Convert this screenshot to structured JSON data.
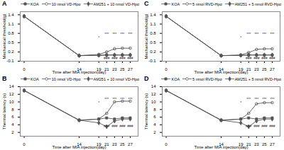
{
  "chart_data": [
    {
      "type": "line",
      "title": "A",
      "xlabel": "Time after MIA injection(day)",
      "ylabel": "Mechanical threshold(g)",
      "x": [
        0,
        14,
        19,
        21,
        23,
        25,
        27
      ],
      "xlim": [
        -1,
        29
      ],
      "xticks": [
        0,
        14,
        19,
        21,
        23,
        25,
        27
      ],
      "ylim": [
        -0.1,
        1.5
      ],
      "yticks": [
        -0.1,
        0.2,
        0.5,
        0.8,
        1.1,
        1.4
      ],
      "grid": false,
      "legend": "upper right",
      "series": [
        {
          "name": "KOA",
          "color": "#555555",
          "marker": "square",
          "line_style": "solid",
          "values": [
            1.35,
            0.08,
            0.09,
            0.1,
            0.1,
            0.1,
            0.1
          ]
        },
        {
          "name": "10 nmol VD-Hpα",
          "color": "#555555",
          "marker": "open-circle",
          "line_style": "solid",
          "values": [
            1.35,
            0.08,
            0.12,
            0.2,
            0.3,
            0.32,
            0.32
          ]
        },
        {
          "name": "AM251 + 10 nmol VD-Hpα",
          "color": "#555555",
          "marker": "diamond",
          "line_style": "solid",
          "values": [
            1.35,
            0.08,
            0.09,
            0.1,
            0.1,
            0.1,
            0.1
          ]
        }
      ],
      "annotations": [
        {
          "text": "***",
          "x": 21,
          "y": 0.732
        },
        {
          "text": "***",
          "x": 23,
          "y": 0.732
        },
        {
          "text": "***",
          "x": 25,
          "y": 0.732
        },
        {
          "text": "***",
          "x": 27,
          "y": 0.732
        },
        {
          "text": "###",
          "x": 21,
          "y": -0.052
        },
        {
          "text": "###",
          "x": 23,
          "y": -0.052
        },
        {
          "text": "###",
          "x": 25,
          "y": -0.052
        },
        {
          "text": "###",
          "x": 27,
          "y": -0.052
        },
        {
          "text": "*",
          "x": 19,
          "y": 0.6222
        }
      ]
    },
    {
      "type": "line",
      "title": "B",
      "xlabel": "Time after MIA injection(day)",
      "ylabel": "Thermal latency (s)",
      "x": [
        0,
        14,
        19,
        21,
        23,
        25,
        27
      ],
      "xlim": [
        -1,
        29
      ],
      "xticks": [
        0,
        14,
        19,
        21,
        23,
        25,
        27
      ],
      "ylim": [
        1,
        14
      ],
      "yticks": [
        2,
        4,
        6,
        8,
        10,
        12,
        14
      ],
      "grid": false,
      "legend": "upper right",
      "series": [
        {
          "name": "KOA",
          "color": "#555555",
          "marker": "square",
          "line_style": "solid",
          "values": [
            13.0,
            5.2,
            5.5,
            5.8,
            5.5,
            5.8,
            5.8
          ]
        },
        {
          "name": "10 nmol VD-Hpα",
          "color": "#555555",
          "marker": "open-circle",
          "line_style": "solid",
          "values": [
            13.0,
            5.2,
            5.5,
            7.0,
            10.0,
            10.2,
            10.2
          ]
        },
        {
          "name": "AM251 + 10 nmol VD-Hpα",
          "color": "#555555",
          "marker": "diamond",
          "line_style": "solid",
          "values": [
            13.0,
            5.2,
            4.5,
            3.5,
            5.0,
            5.5,
            5.5
          ]
        }
      ],
      "annotations": [
        {
          "text": "***",
          "x": 21,
          "y": 10.36
        },
        {
          "text": "***",
          "x": 23,
          "y": 10.36
        },
        {
          "text": "***",
          "x": 25,
          "y": 10.36
        },
        {
          "text": "***",
          "x": 27,
          "y": 10.36
        },
        {
          "text": "###",
          "x": 21,
          "y": 3.34
        },
        {
          "text": "###",
          "x": 23,
          "y": 3.34
        },
        {
          "text": "###",
          "x": 25,
          "y": 3.34
        },
        {
          "text": "###",
          "x": 27,
          "y": 3.34
        },
        {
          "text": "*",
          "x": 19,
          "y": 9.5312
        }
      ]
    },
    {
      "type": "line",
      "title": "C",
      "xlabel": "Time after MIA injection(day)",
      "ylabel": "Mechanical threshold(g)",
      "x": [
        0,
        14,
        19,
        21,
        23,
        25,
        27
      ],
      "xlim": [
        -1,
        29
      ],
      "xticks": [
        0,
        14,
        19,
        21,
        23,
        25,
        27
      ],
      "ylim": [
        -0.1,
        1.5
      ],
      "yticks": [
        -0.1,
        0.2,
        0.5,
        0.8,
        1.1,
        1.4
      ],
      "grid": false,
      "legend": "upper right",
      "series": [
        {
          "name": "KOA",
          "color": "#555555",
          "marker": "square",
          "line_style": "solid",
          "values": [
            1.35,
            0.08,
            0.09,
            0.1,
            0.1,
            0.1,
            0.1
          ]
        },
        {
          "name": "5 nmol RVD-Hpα",
          "color": "#555555",
          "marker": "open-circle",
          "line_style": "solid",
          "values": [
            1.35,
            0.08,
            0.1,
            0.18,
            0.28,
            0.3,
            0.3
          ]
        },
        {
          "name": "AM251 + 5 nmol RVD-Hpα",
          "color": "#555555",
          "marker": "diamond",
          "line_style": "solid",
          "values": [
            1.35,
            0.08,
            0.09,
            0.1,
            0.1,
            0.1,
            0.1
          ]
        }
      ],
      "annotations": [
        {
          "text": "***",
          "x": 21,
          "y": 0.732
        },
        {
          "text": "***",
          "x": 23,
          "y": 0.732
        },
        {
          "text": "***",
          "x": 25,
          "y": 0.732
        },
        {
          "text": "***",
          "x": 27,
          "y": 0.732
        },
        {
          "text": "###",
          "x": 21,
          "y": -0.052
        },
        {
          "text": "###",
          "x": 23,
          "y": -0.052
        },
        {
          "text": "###",
          "x": 25,
          "y": -0.052
        },
        {
          "text": "###",
          "x": 27,
          "y": -0.052
        },
        {
          "text": "*",
          "x": 19,
          "y": 0.6222
        }
      ]
    },
    {
      "type": "line",
      "title": "D",
      "xlabel": "Time after MIA injection(day)",
      "ylabel": "Thermal latency (s)",
      "x": [
        0,
        14,
        19,
        21,
        23,
        25,
        27
      ],
      "xlim": [
        -1,
        29
      ],
      "xticks": [
        0,
        14,
        19,
        21,
        23,
        25,
        27
      ],
      "ylim": [
        1,
        14
      ],
      "yticks": [
        2,
        4,
        6,
        8,
        10,
        12,
        14
      ],
      "grid": false,
      "legend": "upper right",
      "series": [
        {
          "name": "KOA",
          "color": "#555555",
          "marker": "square",
          "line_style": "solid",
          "values": [
            13.0,
            5.2,
            5.5,
            5.8,
            5.5,
            5.8,
            5.8
          ]
        },
        {
          "name": "5 nmol RVD-Hpα",
          "color": "#555555",
          "marker": "open-circle",
          "line_style": "solid",
          "values": [
            13.0,
            5.2,
            5.5,
            7.0,
            9.5,
            9.8,
            9.8
          ]
        },
        {
          "name": "AM251 + 5 nmol RVD-Hpα",
          "color": "#555555",
          "marker": "diamond",
          "line_style": "solid",
          "values": [
            13.0,
            5.2,
            4.5,
            3.5,
            5.0,
            5.5,
            5.5
          ]
        }
      ],
      "annotations": [
        {
          "text": "***",
          "x": 21,
          "y": 10.36
        },
        {
          "text": "***",
          "x": 23,
          "y": 10.36
        },
        {
          "text": "***",
          "x": 25,
          "y": 10.36
        },
        {
          "text": "***",
          "x": 27,
          "y": 10.36
        },
        {
          "text": "###",
          "x": 21,
          "y": 3.34
        },
        {
          "text": "###",
          "x": 23,
          "y": 3.34
        },
        {
          "text": "###",
          "x": 25,
          "y": 3.34
        },
        {
          "text": "###",
          "x": 27,
          "y": 3.34
        },
        {
          "text": "*",
          "x": 19,
          "y": 9.5312
        }
      ]
    }
  ]
}
